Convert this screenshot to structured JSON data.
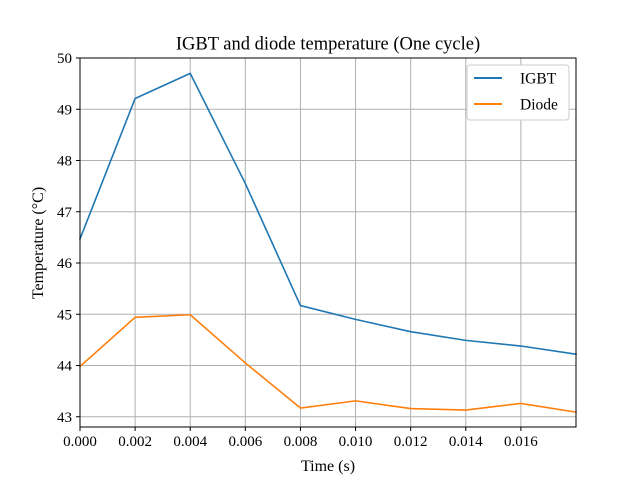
{
  "chart_data": {
    "type": "line",
    "title": "IGBT and diode temperature (One cycle)",
    "xlabel": "Time (s)",
    "ylabel": "Temperature (°C)",
    "xlim": [
      0,
      0.018
    ],
    "ylim": [
      42.8,
      50
    ],
    "x_ticks": [
      0,
      0.002,
      0.004,
      0.006,
      0.008,
      0.01,
      0.012,
      0.014,
      0.016
    ],
    "x_tick_labels": [
      "0.000",
      "0.002",
      "0.004",
      "0.006",
      "0.008",
      "0.010",
      "0.012",
      "0.014",
      "0.016"
    ],
    "y_ticks": [
      43,
      44,
      45,
      46,
      47,
      48,
      49,
      50
    ],
    "y_tick_labels": [
      "43",
      "44",
      "45",
      "46",
      "47",
      "48",
      "49",
      "50"
    ],
    "grid": true,
    "legend": "top-right",
    "x": [
      0,
      0.002,
      0.004,
      0.006,
      0.008,
      0.01,
      0.012,
      0.014,
      0.016,
      0.018
    ],
    "series": [
      {
        "name": "IGBT",
        "color": "#1f77b4",
        "values": [
          46.47,
          49.21,
          49.7,
          47.55,
          45.17,
          44.9,
          44.66,
          44.49,
          44.38,
          44.22
        ]
      },
      {
        "name": "Diode",
        "color": "#ff7f0e",
        "values": [
          43.98,
          44.94,
          44.99,
          44.05,
          43.17,
          43.31,
          43.16,
          43.13,
          43.26,
          43.09
        ]
      }
    ]
  }
}
